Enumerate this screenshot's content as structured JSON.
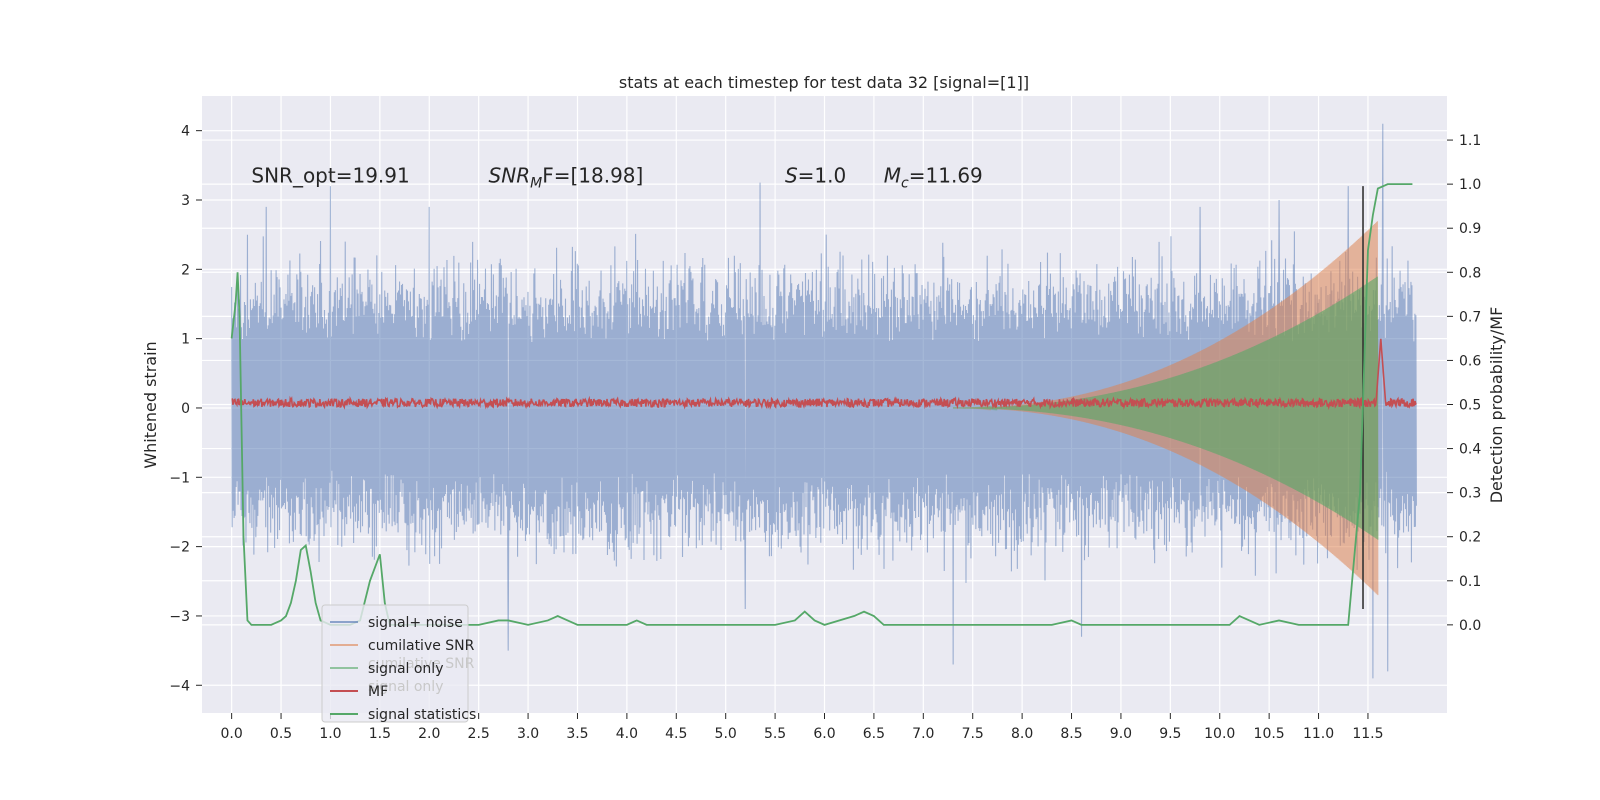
{
  "chart_data": {
    "type": "line",
    "title": "stats at each timestep for test data 32 [signal=[1]]",
    "ylabel": "Whitened strain",
    "ylabel_right": "Detection probability/MF",
    "xlabel": "",
    "xlim": [
      -0.3,
      12.3
    ],
    "ylim": [
      -4.4,
      4.5
    ],
    "ylim_right": [
      -0.2,
      1.2
    ],
    "grid": true,
    "background": "#eaeaf2",
    "x_ticks": [
      0.0,
      0.5,
      1.0,
      1.5,
      2.0,
      2.5,
      3.0,
      3.5,
      4.0,
      4.5,
      5.0,
      5.5,
      6.0,
      6.5,
      7.0,
      7.5,
      8.0,
      8.5,
      9.0,
      9.5,
      10.0,
      10.5,
      11.0,
      11.5
    ],
    "x_tick_labels": [
      "0.0",
      "0.5",
      "1.0",
      "1.5",
      "2.0",
      "2.5",
      "3.0",
      "3.5",
      "4.0",
      "4.5",
      "5.0",
      "5.5",
      "6.0",
      "6.5",
      "7.0",
      "7.5",
      "8.0",
      "8.5",
      "9.0",
      "9.5",
      "10.0",
      "10.5",
      "11.0",
      "11.5"
    ],
    "y_ticks": [
      -4,
      -3,
      -2,
      -1,
      0,
      1,
      2,
      3,
      4
    ],
    "y_tick_labels": [
      "−4",
      "−3",
      "−2",
      "−1",
      "0",
      "1",
      "2",
      "3",
      "4"
    ],
    "y_right_ticks": [
      0.0,
      0.1,
      0.2,
      0.3,
      0.4,
      0.5,
      0.6,
      0.7,
      0.8,
      0.9,
      1.0,
      1.1
    ],
    "y_right_tick_labels": [
      "0.0",
      "0.1",
      "0.2",
      "0.3",
      "0.4",
      "0.5",
      "0.6",
      "0.7",
      "0.8",
      "0.9",
      "1.0",
      "1.1"
    ],
    "annotations": [
      {
        "id": "snr-opt",
        "text": "SNR_opt=19.91",
        "x": 0.2,
        "y": 3.25
      },
      {
        "id": "snr-mf",
        "base": "SNR",
        "sub": "M",
        "rest": "F=[18.98]",
        "x": 2.6,
        "y": 3.25
      },
      {
        "id": "s-val",
        "base": "S",
        "rest": "=1.0",
        "x": 5.6,
        "y": 3.25
      },
      {
        "id": "mc-val",
        "base": "M",
        "sub": "c",
        "rest": "=11.69",
        "x": 6.6,
        "y": 3.25
      }
    ],
    "series": [
      {
        "name": "signal+ noise",
        "color": "#4c72b0",
        "axis": "left",
        "x_range": [
          0.0,
          11.99
        ],
        "typical_amplitude": 1.3,
        "peaks": [
          {
            "x": 0.35,
            "y": 2.9
          },
          {
            "x": 1.0,
            "y": 3.2
          },
          {
            "x": 2.0,
            "y": 2.9
          },
          {
            "x": 2.8,
            "y": -3.5
          },
          {
            "x": 5.35,
            "y": 3.25
          },
          {
            "x": 5.2,
            "y": -2.9
          },
          {
            "x": 7.3,
            "y": -3.7
          },
          {
            "x": 8.6,
            "y": -3.3
          },
          {
            "x": 9.8,
            "y": 2.9
          },
          {
            "x": 10.6,
            "y": 3.0
          },
          {
            "x": 11.3,
            "y": 3.2
          },
          {
            "x": 11.65,
            "y": 4.1
          },
          {
            "x": 11.55,
            "y": -3.9
          },
          {
            "x": 11.7,
            "y": -3.8
          }
        ]
      },
      {
        "name": "cumilative SNR",
        "color": "#dd8452",
        "axis": "left",
        "x_range": [
          7.3,
          11.6
        ],
        "envelope_end": 2.7
      },
      {
        "name": "signal only",
        "color": "#55a868",
        "axis": "left",
        "x_range": [
          7.3,
          11.6
        ],
        "envelope_end": 1.9
      },
      {
        "name": "MF",
        "color": "#c44e52",
        "axis": "left",
        "x_range": [
          0.0,
          11.99
        ],
        "baseline": 0.05,
        "peak": {
          "x": 11.63,
          "y": 1.0
        }
      },
      {
        "name": "signal statistics",
        "color": "#55a868",
        "axis": "right",
        "points": [
          [
            0.0,
            0.65
          ],
          [
            0.04,
            0.73
          ],
          [
            0.06,
            0.8
          ],
          [
            0.08,
            0.7
          ],
          [
            0.12,
            0.2
          ],
          [
            0.16,
            0.01
          ],
          [
            0.2,
            0.0
          ],
          [
            0.3,
            0.0
          ],
          [
            0.4,
            0.0
          ],
          [
            0.5,
            0.01
          ],
          [
            0.55,
            0.02
          ],
          [
            0.6,
            0.05
          ],
          [
            0.65,
            0.1
          ],
          [
            0.7,
            0.17
          ],
          [
            0.75,
            0.18
          ],
          [
            0.8,
            0.12
          ],
          [
            0.85,
            0.05
          ],
          [
            0.9,
            0.01
          ],
          [
            1.0,
            0.0
          ],
          [
            1.2,
            0.0
          ],
          [
            1.3,
            0.01
          ],
          [
            1.4,
            0.1
          ],
          [
            1.5,
            0.16
          ],
          [
            1.55,
            0.05
          ],
          [
            1.6,
            0.0
          ],
          [
            1.8,
            0.0
          ],
          [
            2.0,
            0.0
          ],
          [
            2.5,
            0.0
          ],
          [
            2.7,
            0.01
          ],
          [
            2.8,
            0.01
          ],
          [
            3.0,
            0.0
          ],
          [
            3.2,
            0.01
          ],
          [
            3.3,
            0.02
          ],
          [
            3.4,
            0.01
          ],
          [
            3.5,
            0.0
          ],
          [
            4.0,
            0.0
          ],
          [
            4.1,
            0.01
          ],
          [
            4.2,
            0.0
          ],
          [
            4.5,
            0.0
          ],
          [
            5.0,
            0.0
          ],
          [
            5.5,
            0.0
          ],
          [
            5.7,
            0.01
          ],
          [
            5.8,
            0.03
          ],
          [
            5.9,
            0.01
          ],
          [
            6.0,
            0.0
          ],
          [
            6.3,
            0.02
          ],
          [
            6.4,
            0.03
          ],
          [
            6.5,
            0.02
          ],
          [
            6.6,
            0.0
          ],
          [
            7.0,
            0.0
          ],
          [
            8.0,
            0.0
          ],
          [
            8.3,
            0.0
          ],
          [
            8.5,
            0.01
          ],
          [
            8.6,
            0.0
          ],
          [
            9.0,
            0.0
          ],
          [
            9.5,
            0.0
          ],
          [
            10.0,
            0.0
          ],
          [
            10.1,
            0.0
          ],
          [
            10.2,
            0.02
          ],
          [
            10.4,
            0.0
          ],
          [
            10.6,
            0.01
          ],
          [
            10.8,
            0.0
          ],
          [
            11.0,
            0.0
          ],
          [
            11.2,
            0.0
          ],
          [
            11.3,
            0.0
          ],
          [
            11.42,
            0.3
          ],
          [
            11.5,
            0.85
          ],
          [
            11.55,
            0.93
          ],
          [
            11.6,
            0.99
          ],
          [
            11.7,
            1.0
          ],
          [
            11.8,
            1.0
          ],
          [
            11.9,
            1.0
          ],
          [
            11.95,
            1.0
          ]
        ]
      }
    ],
    "vline": {
      "x": 11.45,
      "color": "#333333"
    },
    "legend": {
      "position": "lower-left",
      "entries": [
        {
          "label": "signal+ noise",
          "color": "#4c72b0"
        },
        {
          "label": "cumilative SNR",
          "color": "#dd8452"
        },
        {
          "label": "signal only",
          "color": "#55a868"
        },
        {
          "label": "MF",
          "color": "#c44e52"
        },
        {
          "label": "signal statistics",
          "color": "#55a868"
        }
      ],
      "ghost_entries": [
        "cumilative SNR",
        "signal only"
      ]
    }
  }
}
